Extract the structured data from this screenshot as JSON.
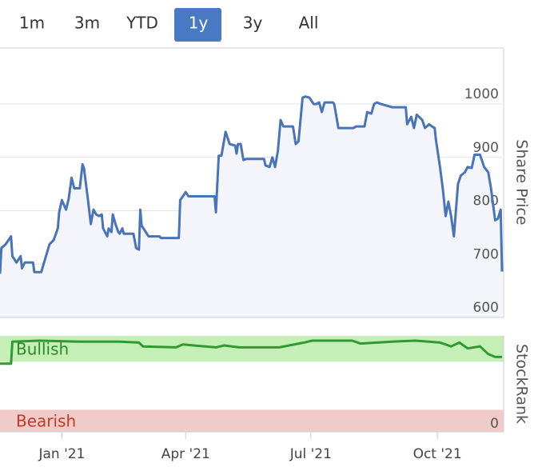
{
  "range_selector": {
    "buttons": [
      "1m",
      "3m",
      "YTD",
      "1y",
      "3y",
      "All"
    ]
  },
  "chart_data": [
    {
      "type": "area-line",
      "y_label": "Share Price",
      "xlim": [
        -45,
        320
      ],
      "ylim": [
        600,
        1105
      ],
      "yticks": [
        600,
        700,
        800,
        900,
        1000
      ],
      "grid": true,
      "series": [
        {
          "color": "#4a74b8",
          "fill": "#f3f5fa",
          "x": [
            -45,
            -44,
            -41,
            -37,
            -36,
            -33,
            -30,
            -29,
            -27,
            -21,
            -20,
            -15,
            -13,
            -9,
            -6,
            -3,
            -2,
            0,
            3,
            5,
            7,
            9,
            13,
            15,
            16,
            19,
            21,
            23,
            25,
            27,
            29,
            30,
            33,
            34,
            36,
            37,
            39,
            41,
            42,
            44,
            45,
            52,
            54,
            56,
            57,
            58,
            61,
            63,
            71,
            72,
            85,
            86,
            88,
            90,
            92,
            111,
            112,
            114,
            116,
            119,
            122,
            126,
            127,
            128,
            130,
            132,
            134,
            147,
            148,
            151,
            153,
            155,
            157,
            159,
            161,
            162,
            168,
            170,
            172,
            175,
            177,
            180,
            183,
            185,
            187,
            189,
            191,
            197,
            198,
            201,
            204,
            212,
            214,
            220,
            222,
            225,
            227,
            229,
            232,
            236,
            240,
            250,
            251,
            254,
            256,
            258,
            262,
            264,
            267,
            269,
            271,
            272,
            275,
            277,
            279,
            281,
            283,
            285,
            288,
            290,
            293,
            295,
            298,
            300,
            304,
            307,
            310,
            312,
            315,
            317,
            319,
            320
          ],
          "values": [
            682,
            730,
            737,
            752,
            715,
            703,
            715,
            692,
            703,
            703,
            685,
            685,
            703,
            737,
            745,
            767,
            797,
            820,
            802,
            823,
            862,
            842,
            842,
            887,
            880,
            820,
            775,
            802,
            793,
            790,
            793,
            767,
            752,
            767,
            760,
            793,
            775,
            760,
            757,
            767,
            757,
            757,
            730,
            727,
            802,
            772,
            760,
            752,
            752,
            749,
            749,
            820,
            827,
            835,
            827,
            827,
            797,
            903,
            903,
            948,
            925,
            922,
            907,
            925,
            925,
            895,
            897,
            897,
            885,
            882,
            900,
            882,
            912,
            970,
            958,
            958,
            958,
            925,
            930,
            1012,
            1014,
            1012,
            1000,
            1000,
            1003,
            985,
            1003,
            1003,
            1000,
            955,
            955,
            955,
            958,
            958,
            985,
            982,
            1000,
            1003,
            1000,
            997,
            994,
            994,
            962,
            976,
            955,
            980,
            970,
            955,
            962,
            958,
            955,
            932,
            880,
            840,
            790,
            817,
            790,
            752,
            850,
            866,
            872,
            882,
            880,
            905,
            905,
            882,
            872,
            842,
            782,
            785,
            802,
            686
          ]
        }
      ]
    },
    {
      "type": "line",
      "y_label": "StockRank",
      "xlim": [
        -45,
        320
      ],
      "ylim": [
        0,
        100
      ],
      "yticks": [
        0
      ],
      "xticks": [
        {
          "value": 0,
          "label": "Jan '21"
        },
        {
          "value": 90,
          "label": "Apr '21"
        },
        {
          "value": 181,
          "label": "Jul '21"
        },
        {
          "value": 273,
          "label": "Oct '21"
        }
      ],
      "bands": [
        {
          "label": "Bullish",
          "range": [
            73,
            100
          ],
          "color": "#c6efb8",
          "text_color": "#2a8a2a"
        },
        {
          "label": "Bearish",
          "range": [
            0,
            23
          ],
          "color": "#f0cbc7",
          "text_color": "#c0392b"
        }
      ],
      "series": [
        {
          "color": "#2f9b2f",
          "x": [
            -45,
            -37,
            -36,
            -16,
            13,
            42,
            56,
            59,
            83,
            88,
            112,
            118,
            129,
            158,
            176,
            182,
            211,
            217,
            240,
            257,
            275,
            283,
            289,
            295,
            304,
            310,
            315,
            320
          ],
          "values": [
            71,
            71,
            94,
            95,
            94,
            94,
            93,
            89,
            88,
            91,
            88,
            90,
            88,
            88,
            93,
            95,
            95,
            92,
            94,
            95,
            93,
            89,
            93,
            87,
            89,
            81,
            78,
            78
          ]
        }
      ]
    }
  ]
}
